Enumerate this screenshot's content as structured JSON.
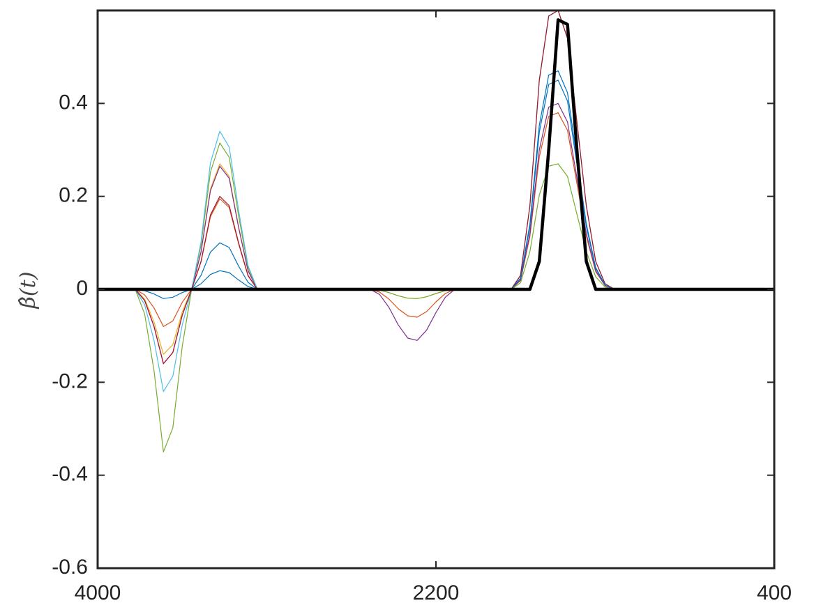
{
  "chart_data": {
    "type": "line",
    "ylabel": "β̂(t)",
    "xlim": [
      4000,
      400
    ],
    "xticks": [
      4000,
      2200,
      400
    ],
    "ylim": [
      -0.6,
      0.6
    ],
    "yticks": [
      -0.6,
      -0.4,
      -0.2,
      0,
      0.2,
      0.4
    ],
    "x": [
      4000,
      3950,
      3900,
      3850,
      3800,
      3750,
      3700,
      3650,
      3600,
      3550,
      3500,
      3450,
      3400,
      3350,
      3300,
      3250,
      3200,
      3150,
      3100,
      3050,
      3000,
      2950,
      2900,
      2850,
      2800,
      2750,
      2700,
      2650,
      2600,
      2550,
      2500,
      2450,
      2400,
      2350,
      2300,
      2250,
      2200,
      2150,
      2100,
      2050,
      2000,
      1950,
      1900,
      1850,
      1800,
      1750,
      1700,
      1650,
      1600,
      1550,
      1500,
      1450,
      1400,
      1350,
      1300,
      1250,
      1200,
      1150,
      1100,
      1050,
      1000,
      950,
      900,
      850,
      800,
      750,
      700,
      650,
      600,
      550,
      500,
      450,
      400
    ],
    "series": [
      {
        "color": "#0072BD",
        "values": [
          0,
          0,
          0,
          0,
          0,
          -0.003,
          -0.01,
          -0.02,
          -0.017,
          -0.007,
          0,
          0.03,
          0.08,
          0.1,
          0.09,
          0.05,
          0.015,
          0,
          0,
          0,
          0,
          0,
          0,
          0,
          0,
          0,
          0,
          0,
          0,
          0,
          0,
          0,
          0,
          0,
          0,
          0,
          0,
          0,
          0,
          0,
          0,
          0,
          0,
          0,
          0,
          0.024,
          0.141,
          0.353,
          0.461,
          0.47,
          0.423,
          0.282,
          0.141,
          0.047,
          0.009,
          0,
          0,
          0,
          0,
          0,
          0,
          0,
          0,
          0,
          0,
          0,
          0,
          0,
          0,
          0,
          0,
          0,
          0
        ]
      },
      {
        "color": "#D95319",
        "values": [
          0,
          0,
          0,
          0,
          0,
          -0.012,
          -0.04,
          -0.08,
          -0.068,
          -0.028,
          0,
          0.059,
          0.156,
          0.195,
          0.176,
          0.098,
          0.029,
          0,
          0,
          0,
          0,
          0,
          0,
          0,
          0,
          0,
          0,
          0,
          0,
          0,
          -0.006,
          -0.021,
          -0.042,
          -0.057,
          -0.06,
          -0.048,
          -0.027,
          -0.009,
          0,
          0,
          0,
          0,
          0,
          0,
          0,
          0.019,
          0.114,
          0.285,
          0.372,
          0.38,
          0.342,
          0.228,
          0.114,
          0.038,
          0.008,
          0,
          0,
          0,
          0,
          0,
          0,
          0,
          0,
          0,
          0,
          0,
          0,
          0,
          0,
          0,
          0,
          0,
          0
        ]
      },
      {
        "color": "#EDB120",
        "values": [
          0,
          0,
          0,
          0,
          0,
          -0.021,
          -0.07,
          -0.14,
          -0.119,
          -0.049,
          0,
          0.081,
          0.216,
          0.27,
          0.243,
          0.135,
          0.041,
          0,
          0,
          0,
          0,
          0,
          0,
          0,
          0,
          0,
          0,
          0,
          0,
          0,
          -0.002,
          -0.007,
          -0.014,
          -0.019,
          -0.02,
          -0.016,
          -0.009,
          -0.003,
          0,
          0,
          0,
          0,
          0,
          0,
          0,
          0.03,
          0.18,
          0.45,
          0.588,
          0.6,
          0.54,
          0.36,
          0.18,
          0.06,
          0.012,
          0,
          0,
          0,
          0,
          0,
          0,
          0,
          0,
          0,
          0,
          0,
          0,
          0,
          0,
          0,
          0,
          0,
          0
        ]
      },
      {
        "color": "#7E2F8E",
        "values": [
          0,
          0,
          0,
          0,
          0,
          -0.024,
          -0.08,
          -0.16,
          -0.136,
          -0.056,
          0,
          0.08,
          0.212,
          0.265,
          0.239,
          0.133,
          0.04,
          0,
          0,
          0,
          0,
          0,
          0,
          0,
          0,
          0,
          0,
          0,
          0,
          0,
          -0.011,
          -0.039,
          -0.077,
          -0.105,
          -0.11,
          -0.088,
          -0.05,
          -0.017,
          0,
          0,
          0,
          0,
          0,
          0,
          0,
          0.02,
          0.12,
          0.3,
          0.392,
          0.4,
          0.36,
          0.24,
          0.12,
          0.04,
          0.008,
          0,
          0,
          0,
          0,
          0,
          0,
          0,
          0,
          0,
          0,
          0,
          0,
          0,
          0,
          0,
          0,
          0,
          0
        ]
      },
      {
        "color": "#77AC30",
        "values": [
          0,
          0,
          0,
          0,
          0,
          -0.053,
          -0.175,
          -0.35,
          -0.298,
          -0.123,
          0,
          0.095,
          0.252,
          0.315,
          0.284,
          0.158,
          0.047,
          0,
          0,
          0,
          0,
          0,
          0,
          0,
          0,
          0,
          0,
          0,
          0,
          0,
          -0.002,
          -0.007,
          -0.014,
          -0.019,
          -0.02,
          -0.016,
          -0.009,
          -0.003,
          0,
          0,
          0,
          0,
          0,
          0,
          0,
          0.014,
          0.081,
          0.203,
          0.265,
          0.27,
          0.243,
          0.162,
          0.081,
          0.027,
          0.005,
          0,
          0,
          0,
          0,
          0,
          0,
          0,
          0,
          0,
          0,
          0,
          0,
          0,
          0,
          0,
          0,
          0,
          0
        ]
      },
      {
        "color": "#4DBEEE",
        "values": [
          0,
          0,
          0,
          0,
          0,
          -0.033,
          -0.11,
          -0.22,
          -0.187,
          -0.077,
          0,
          0.102,
          0.272,
          0.34,
          0.306,
          0.17,
          0.051,
          0,
          0,
          0,
          0,
          0,
          0,
          0,
          0,
          0,
          0,
          0,
          0,
          0,
          0,
          0,
          0,
          0,
          0,
          0,
          0,
          0,
          0,
          0,
          0,
          0,
          0,
          0,
          0,
          0.03,
          0.18,
          0.45,
          0.588,
          0.6,
          0.54,
          0.36,
          0.18,
          0.06,
          0.012,
          0,
          0,
          0,
          0,
          0,
          0,
          0,
          0,
          0,
          0,
          0,
          0,
          0,
          0,
          0,
          0,
          0,
          0
        ]
      },
      {
        "color": "#A2142F",
        "values": [
          0,
          0,
          0,
          0,
          0,
          -0.024,
          -0.08,
          -0.16,
          -0.136,
          -0.056,
          0,
          0.06,
          0.16,
          0.2,
          0.18,
          0.1,
          0.03,
          0,
          0,
          0,
          0,
          0,
          0,
          0,
          0,
          0,
          0,
          0,
          0,
          0,
          0,
          0,
          0,
          0,
          0,
          0,
          0,
          0,
          0,
          0,
          0,
          0,
          0,
          0,
          0,
          0.03,
          0.18,
          0.45,
          0.588,
          0.6,
          0.54,
          0.36,
          0.18,
          0.06,
          0.012,
          0,
          0,
          0,
          0,
          0,
          0,
          0,
          0,
          0,
          0,
          0,
          0,
          0,
          0,
          0,
          0,
          0,
          0
        ]
      },
      {
        "color": "#0072BD",
        "values": [
          0,
          0,
          0,
          0,
          0,
          0,
          0,
          0,
          0,
          0,
          0,
          0.012,
          0.032,
          0.04,
          0.036,
          0.02,
          0.006,
          0,
          0,
          0,
          0,
          0,
          0,
          0,
          0,
          0,
          0,
          0,
          0,
          0,
          0,
          0,
          0,
          0,
          0,
          0,
          0,
          0,
          0,
          0,
          0,
          0,
          0,
          0,
          0,
          0.023,
          0.135,
          0.338,
          0.441,
          0.45,
          0.405,
          0.27,
          0.135,
          0.045,
          0.009,
          0,
          0,
          0,
          0,
          0,
          0,
          0,
          0,
          0,
          0,
          0,
          0,
          0,
          0,
          0,
          0,
          0,
          0
        ]
      },
      {
        "color": "#000000",
        "values": [
          0,
          0,
          0,
          0,
          0,
          0,
          0,
          0,
          0,
          0,
          0,
          0,
          0,
          0,
          0,
          0,
          0,
          0,
          0,
          0,
          0,
          0,
          0,
          0,
          0,
          0,
          0,
          0,
          0,
          0,
          0,
          0,
          0,
          0,
          0,
          0,
          0,
          0,
          0,
          0,
          0,
          0,
          0,
          0,
          0,
          0,
          0,
          0.06,
          0.3,
          0.58,
          0.57,
          0.3,
          0.06,
          0,
          0,
          0,
          0,
          0,
          0,
          0,
          0,
          0,
          0,
          0,
          0,
          0,
          0,
          0,
          0,
          0,
          0,
          0,
          0
        ]
      }
    ]
  }
}
